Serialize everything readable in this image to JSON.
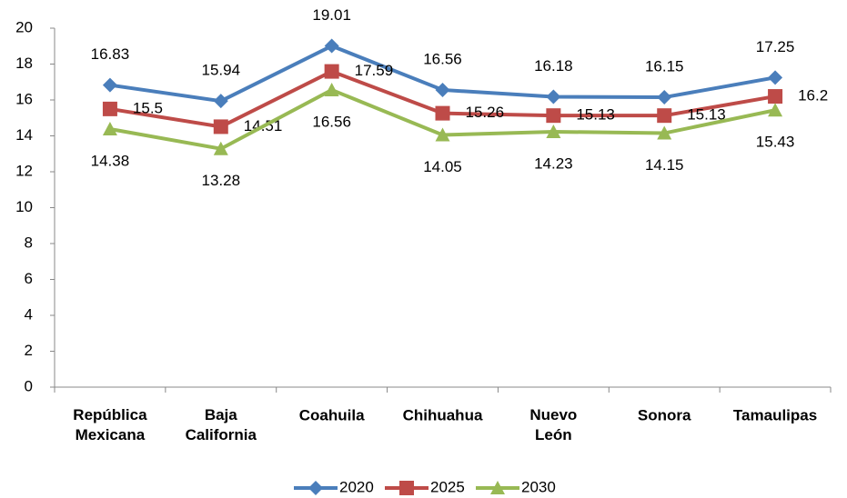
{
  "chart_data": {
    "type": "line",
    "categories": [
      "República Mexicana",
      "Baja California",
      "Coahuila",
      "Chihuahua",
      "Nuevo León",
      "Sonora",
      "Tamaulipas"
    ],
    "series": [
      {
        "name": "2020",
        "color": "#4a7ebb",
        "marker": "diamond",
        "values": [
          16.83,
          15.94,
          19.01,
          16.56,
          16.18,
          16.15,
          17.25
        ]
      },
      {
        "name": "2025",
        "color": "#be4b48",
        "marker": "square",
        "values": [
          15.5,
          14.51,
          17.59,
          15.26,
          15.13,
          15.13,
          16.2
        ]
      },
      {
        "name": "2030",
        "color": "#98b954",
        "marker": "triangle",
        "values": [
          14.38,
          13.28,
          16.56,
          14.05,
          14.23,
          14.15,
          15.43
        ]
      }
    ],
    "ylim": [
      0,
      20
    ],
    "yticks": [
      0,
      2,
      4,
      6,
      8,
      10,
      12,
      14,
      16,
      18,
      20
    ],
    "legend": "bottom"
  }
}
